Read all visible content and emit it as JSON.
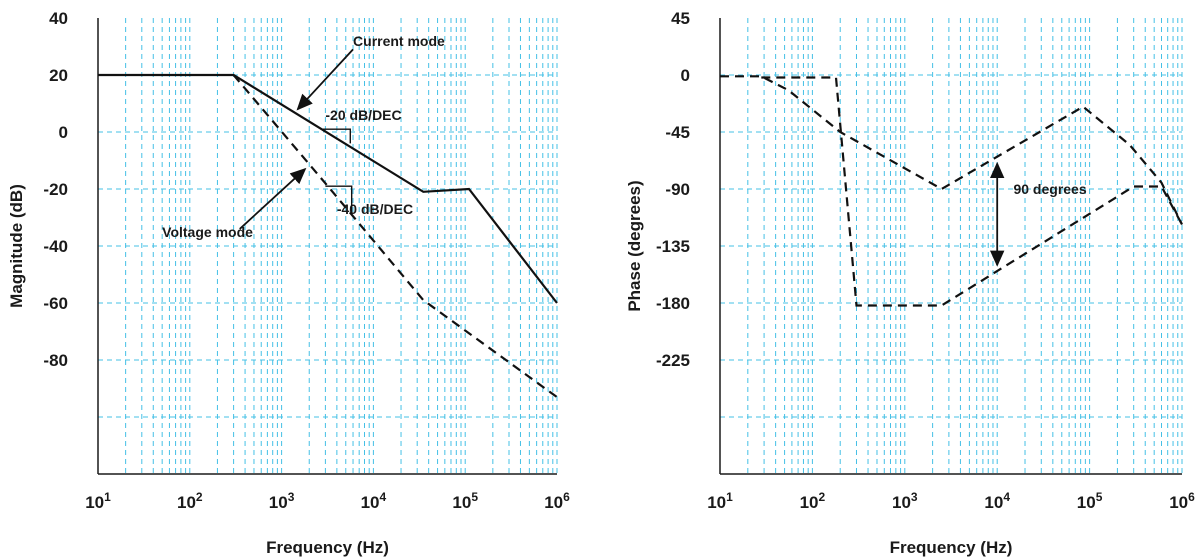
{
  "chart_data": [
    {
      "type": "line",
      "xlabel": "Frequency (Hz)",
      "ylabel": "Magnitude (dB)",
      "x_scale": "log",
      "xlim": [
        10,
        1000000
      ],
      "ylim": [
        -120,
        40
      ],
      "x_tick_labels": [
        {
          "base": "10",
          "exp": "1"
        },
        {
          "base": "10",
          "exp": "2"
        },
        {
          "base": "10",
          "exp": "3"
        },
        {
          "base": "10",
          "exp": "4"
        },
        {
          "base": "10",
          "exp": "5"
        },
        {
          "base": "10",
          "exp": "6"
        }
      ],
      "y_tick_labels": [
        "40",
        "20",
        "0",
        "-20",
        "-40",
        "-60",
        "-80"
      ],
      "y_ticks": [
        40,
        20,
        0,
        -20,
        -40,
        -60,
        -80
      ],
      "y_gridlines": [
        20,
        0,
        -20,
        -40,
        -60,
        -80,
        -100
      ],
      "grid": true,
      "series": [
        {
          "name": "Current mode",
          "style": "solid",
          "x": [
            10,
            300,
            35000,
            110000,
            1000000
          ],
          "y": [
            20,
            20,
            -21,
            -20,
            -60
          ]
        },
        {
          "name": "Voltage mode",
          "style": "dashed",
          "x": [
            300,
            3000,
            35000,
            1000000
          ],
          "y": [
            20,
            -18,
            -59,
            -93
          ]
        }
      ],
      "annotations": [
        {
          "text": "Current mode",
          "x": 6000,
          "y": 32
        },
        {
          "text": "-20 dB/DEC",
          "x": 3000,
          "y": 6
        },
        {
          "text": "Voltage mode",
          "x": 50,
          "y": -35
        },
        {
          "text": "-40 dB/DEC",
          "x": 4000,
          "y": -27
        }
      ]
    },
    {
      "type": "line",
      "xlabel": "Frequency (Hz)",
      "ylabel": "Phase (degrees)",
      "x_scale": "log",
      "xlim": [
        10,
        1000000
      ],
      "ylim": [
        -315,
        45
      ],
      "x_tick_labels": [
        {
          "base": "10",
          "exp": "1"
        },
        {
          "base": "10",
          "exp": "2"
        },
        {
          "base": "10",
          "exp": "3"
        },
        {
          "base": "10",
          "exp": "4"
        },
        {
          "base": "10",
          "exp": "5"
        },
        {
          "base": "10",
          "exp": "6"
        }
      ],
      "y_tick_labels": [
        "45",
        "0",
        "-45",
        "-90",
        "-135",
        "-180",
        "-225"
      ],
      "y_ticks": [
        45,
        0,
        -45,
        -90,
        -135,
        -180,
        -225
      ],
      "y_gridlines": [
        0,
        -45,
        -90,
        -135,
        -180,
        -225,
        -270
      ],
      "grid": true,
      "series": [
        {
          "name": "Current mode",
          "style": "dashed",
          "x": [
            10,
            28,
            55,
            200,
            2500,
            85000,
            270000,
            600000,
            1000000
          ],
          "y": [
            -1,
            -1,
            -12,
            -45,
            -90,
            -25,
            -55,
            -85,
            -118
          ]
        },
        {
          "name": "Voltage mode",
          "style": "dashed",
          "x": [
            28,
            100,
            180,
            300,
            2500,
            300000,
            600000,
            1000000
          ],
          "y": [
            -2,
            -2,
            -2,
            -182,
            -182,
            -88,
            -88,
            -118
          ]
        }
      ],
      "annotations": [
        {
          "text": "90 degrees",
          "x": 15000,
          "y": -90
        }
      ],
      "arrow": {
        "x": 10000,
        "y_from": -70,
        "y_to": -150
      }
    }
  ]
}
